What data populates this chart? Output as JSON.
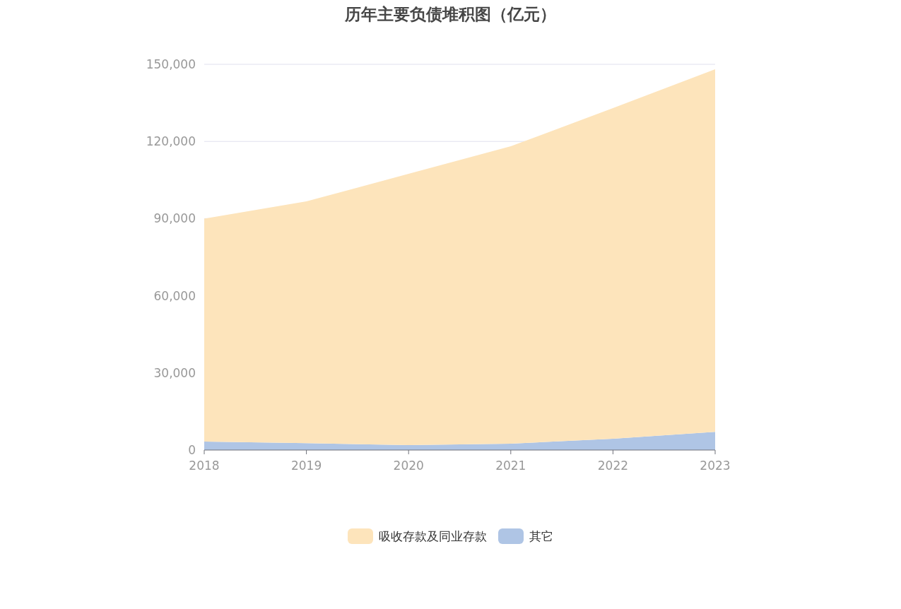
{
  "chart_data": {
    "type": "area",
    "title": "历年主要负债堆积图（亿元）",
    "categories": [
      "2018",
      "2019",
      "2020",
      "2021",
      "2022",
      "2023"
    ],
    "stacked": true,
    "ylim": [
      0,
      150000
    ],
    "yticks": [
      0,
      {
        "value": 30000,
        "label": "30,000"
      },
      {
        "value": 60000,
        "label": "60,000"
      },
      {
        "value": 90000,
        "label": "90,000"
      },
      {
        "value": 120000,
        "label": "120,000"
      },
      {
        "value": 150000,
        "label": "150,000"
      }
    ],
    "grid": "y",
    "legend": "bottom",
    "series": [
      {
        "name": "其它",
        "color": "#afc5e5",
        "values": [
          3300,
          2700,
          1900,
          2500,
          4400,
          7100
        ]
      },
      {
        "name": "吸收存款及同业存款",
        "color": "#fde4bb",
        "values": [
          86700,
          94000,
          105500,
          115600,
          128600,
          141000
        ]
      }
    ]
  }
}
